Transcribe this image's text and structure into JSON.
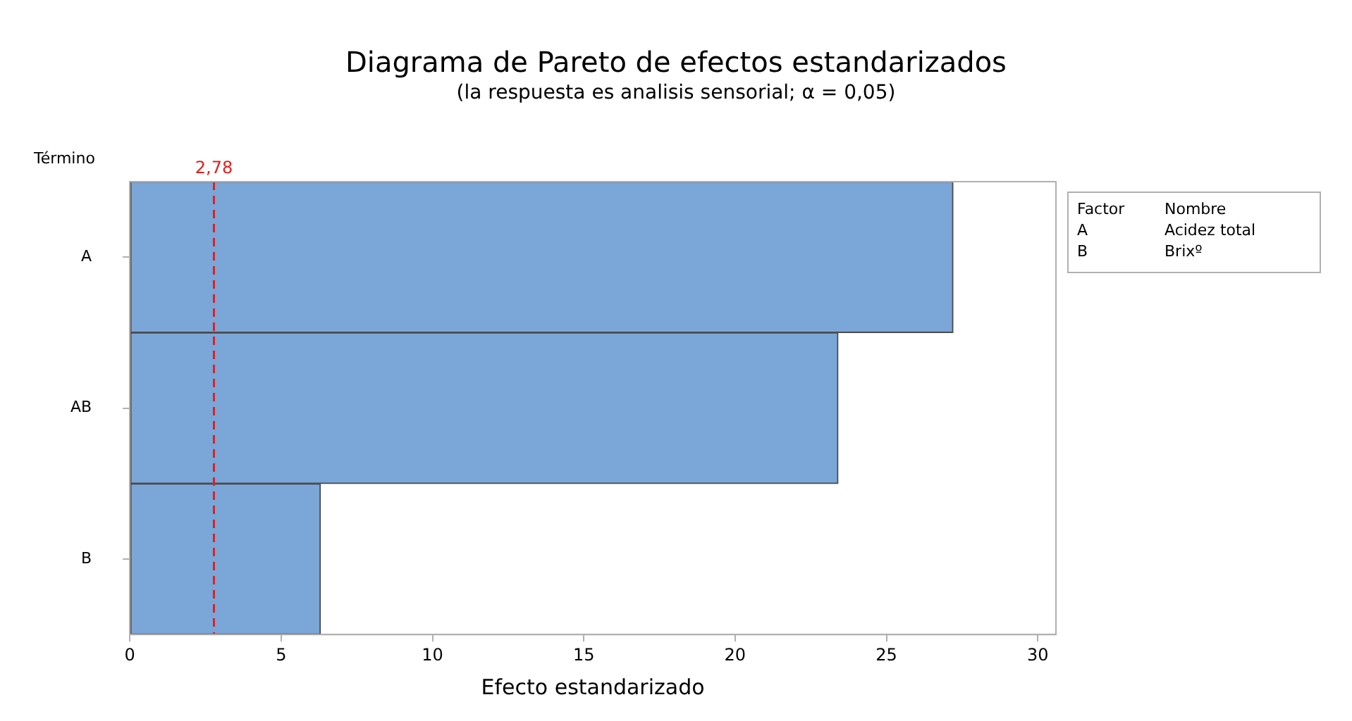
{
  "chart_data": {
    "type": "bar",
    "orientation": "horizontal",
    "title": "Diagrama de Pareto de efectos estandarizados",
    "subtitle": "(la respuesta es analisis sensorial; α = 0,05)",
    "xlabel": "Efecto estandarizado",
    "ylabel": "Término",
    "categories": [
      "A",
      "AB",
      "B"
    ],
    "values": [
      27.2,
      23.4,
      6.3
    ],
    "color": "#7ba6d8",
    "xlim": [
      0,
      30.6
    ],
    "xticks": [
      0,
      5,
      10,
      15,
      20,
      25,
      30
    ],
    "ref_lines": [
      {
        "axis": "x",
        "value": 2.78,
        "label": "2,78",
        "color": "#e02020",
        "line_style": "dashed"
      }
    ],
    "annotations": [
      "Factor",
      "Nombre",
      "A",
      "Acidez total",
      "B",
      "Brixº"
    ],
    "legend": false
  }
}
